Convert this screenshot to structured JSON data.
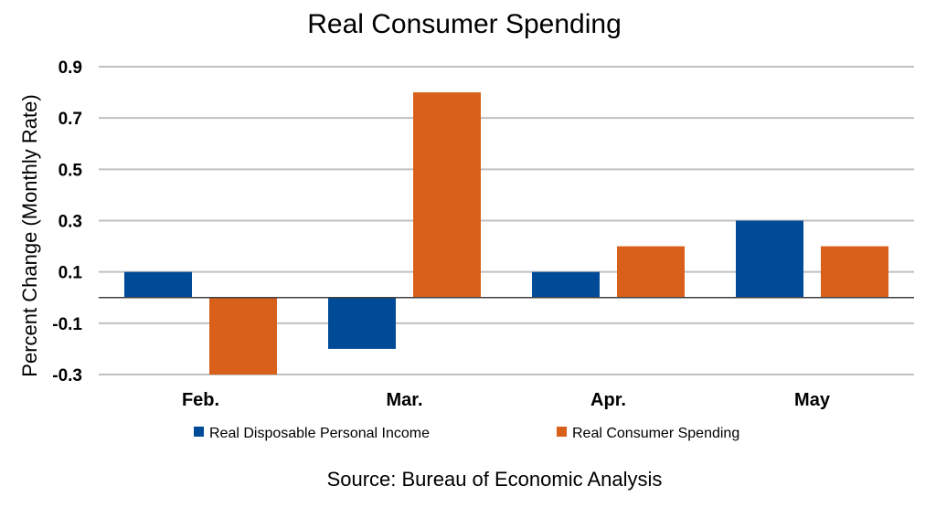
{
  "chart_data": {
    "type": "bar",
    "title": "Real Consumer Spending",
    "xlabel": "",
    "ylabel": "Percent Change (Monthly Rate)",
    "categories": [
      "Feb.",
      "Mar.",
      "Apr.",
      "May"
    ],
    "series": [
      {
        "name": "Real Disposable Personal Income",
        "color": "#004b98",
        "values": [
          0.1,
          -0.2,
          0.1,
          0.3
        ]
      },
      {
        "name": "Real Consumer Spending",
        "color": "#d9601a",
        "values": [
          -0.3,
          0.8,
          0.2,
          0.2
        ]
      }
    ],
    "ylim": [
      -0.3,
      0.9
    ],
    "yticks": [
      0.9,
      0.7,
      0.5,
      0.3,
      0.1,
      -0.1,
      -0.3
    ],
    "ytick_labels": [
      "0.9",
      "0.7",
      "0.5",
      "0.3",
      "0.1",
      "-0.1",
      "-0.3"
    ],
    "grid": true,
    "legend_position": "bottom-center",
    "source": "Source:  Bureau of Economic Analysis"
  }
}
